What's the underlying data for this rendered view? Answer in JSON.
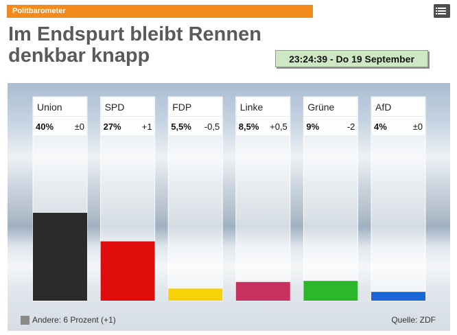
{
  "header": {
    "section_label": "Politbarometer",
    "headline": "Im Endspurt bleibt Rennen denkbar knapp",
    "clock_text": "23:24:39  - Do  19 September"
  },
  "chart_data": {
    "type": "bar",
    "categories": [
      "Union",
      "SPD",
      "FDP",
      "Linke",
      "Grüne",
      "AfD"
    ],
    "values": [
      40,
      27,
      5.5,
      8.5,
      9,
      4
    ],
    "value_labels": [
      "40%",
      "27%",
      "5,5%",
      "8,5%",
      "9%",
      "4%"
    ],
    "change_labels": [
      "±0",
      "+1",
      "-0,5",
      "+0,5",
      "-2",
      "±0"
    ],
    "colors": [
      "#2b2b2b",
      "#e00b0b",
      "#f7d208",
      "#c83060",
      "#2ab82a",
      "#1a66d8"
    ],
    "ylim": [
      0,
      75
    ],
    "legend": "Andere: 6 Prozent (+1)",
    "legend_color": "#8a8a8a",
    "source": "Quelle: ZDF"
  }
}
